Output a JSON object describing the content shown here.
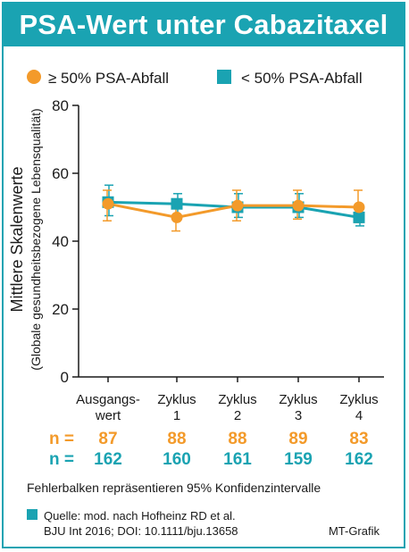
{
  "title": "PSA-Wert unter Cabazitaxel",
  "colors": {
    "accent": "#1aa3b2",
    "orange": "#f39a2a",
    "teal": "#1aa3b2",
    "text": "#1a1a1a"
  },
  "chart_data": {
    "type": "line",
    "ylabel": "Mittlere Skalenwerte",
    "ylabel_sub": "(Globale gesundheitsbezogene Lebensqualität)",
    "ylim": [
      0,
      80
    ],
    "yticks": [
      "0",
      "20",
      "40",
      "60",
      "80"
    ],
    "ytick_values": [
      0,
      20,
      40,
      60,
      80
    ],
    "grid": false,
    "legend_position": "top",
    "categories": [
      [
        "Ausgangs-",
        "wert"
      ],
      [
        "Zyklus",
        "1"
      ],
      [
        "Zyklus",
        "2"
      ],
      [
        "Zyklus",
        "3"
      ],
      [
        "Zyklus",
        "4"
      ]
    ],
    "series": [
      {
        "name": "≥ 50% PSA-Abfall",
        "color": "#f39a2a",
        "marker": "circle",
        "values": [
          51,
          47,
          50.5,
          50.5,
          50
        ],
        "err_low": [
          46,
          43,
          46,
          46.5,
          45.5
        ],
        "err_high": [
          55,
          51,
          55,
          55,
          55
        ],
        "n_label": "n =",
        "n": [
          "87",
          "88",
          "88",
          "89",
          "83"
        ]
      },
      {
        "name": "< 50% PSA-Abfall",
        "color": "#1aa3b2",
        "marker": "square",
        "values": [
          51.5,
          51,
          50,
          50,
          47
        ],
        "err_low": [
          47.5,
          47.5,
          47,
          47,
          44.5
        ],
        "err_high": [
          56.5,
          54,
          54,
          54,
          50
        ]
      }
    ]
  },
  "n_rows": [
    {
      "label": "n =",
      "values": [
        "87",
        "88",
        "88",
        "89",
        "83"
      ],
      "color": "#f39a2a"
    },
    {
      "label": "n =",
      "values": [
        "162",
        "160",
        "161",
        "159",
        "162"
      ],
      "color": "#1aa3b2"
    }
  ],
  "footnote": "Fehlerbalken repräsentieren 95% Konfidenzintervalle",
  "source_line1": "Quelle: mod. nach Hofheinz RD et al.",
  "source_line2": "BJU Int 2016; DOI: 10.1111/bju.13658",
  "credit": "MT-Grafik"
}
